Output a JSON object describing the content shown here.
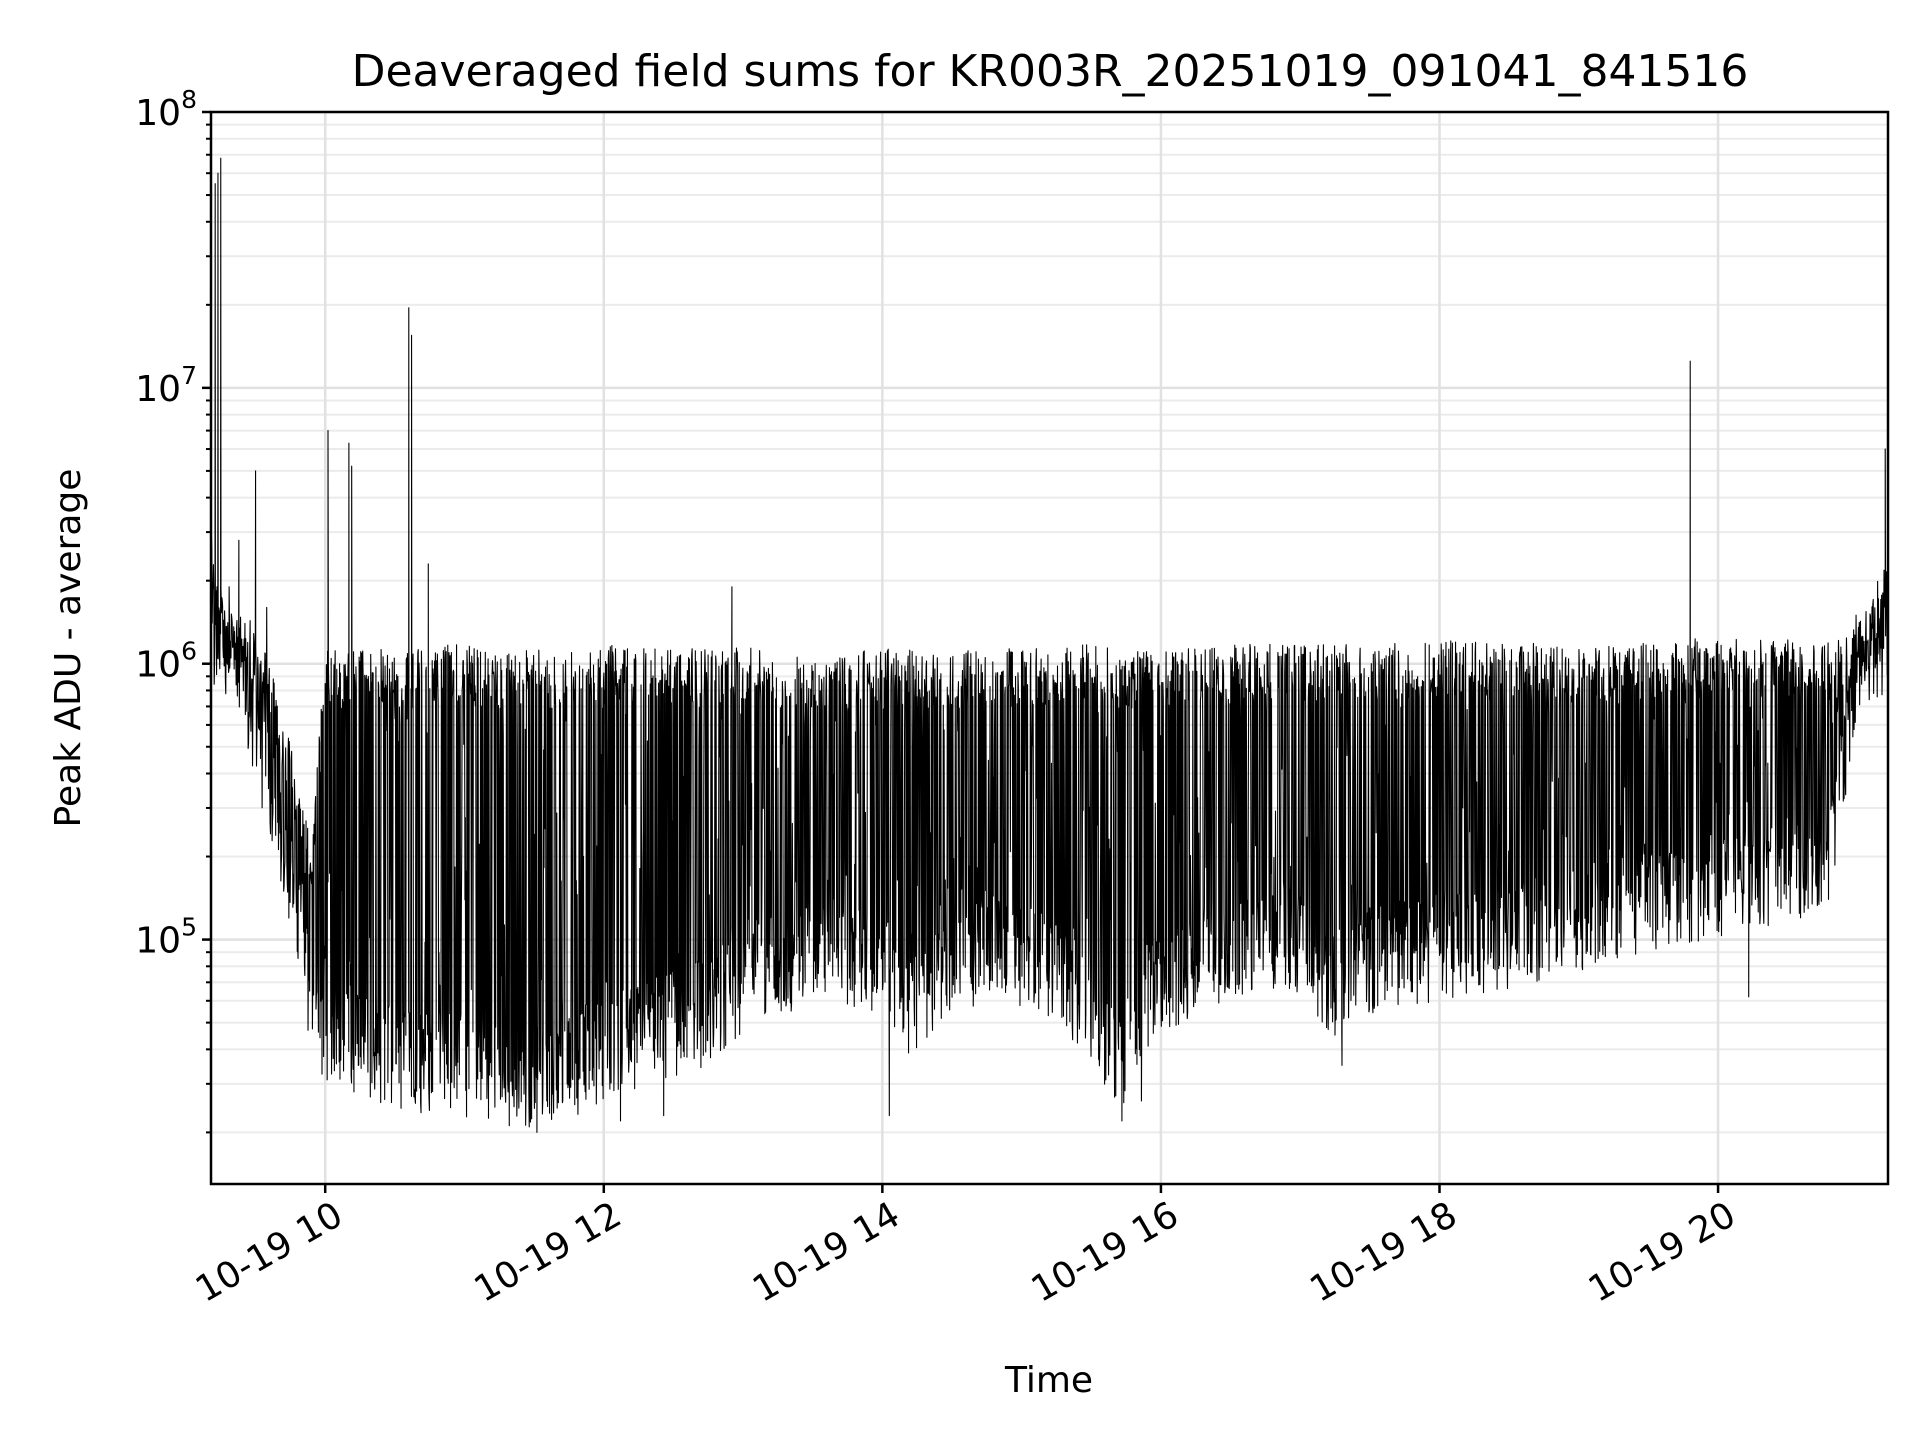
{
  "chart_data": {
    "type": "line",
    "title": "Deaveraged field sums for KR003R_20251019_091041_841516",
    "xlabel": "Time",
    "ylabel": "Peak ADU - average",
    "yscale": "log",
    "ylim": [
      13000,
      100000000
    ],
    "xlim_hours": [
      9.18,
      21.22
    ],
    "grid": true,
    "line_color": "#000000",
    "x_ticks": [
      {
        "hour": 10,
        "label": "10-19 10"
      },
      {
        "hour": 12,
        "label": "10-19 12"
      },
      {
        "hour": 14,
        "label": "10-19 14"
      },
      {
        "hour": 16,
        "label": "10-19 16"
      },
      {
        "hour": 18,
        "label": "10-19 18"
      },
      {
        "hour": 20,
        "label": "10-19 20"
      }
    ],
    "y_ticks": [
      {
        "value": 100000,
        "base": "10",
        "exp": "5"
      },
      {
        "value": 1000000,
        "base": "10",
        "exp": "6"
      },
      {
        "value": 10000000,
        "base": "10",
        "exp": "7"
      },
      {
        "value": 100000000,
        "base": "10",
        "exp": "8"
      }
    ],
    "envelope": {
      "hours": [
        9.18,
        9.22,
        9.3,
        9.4,
        9.5,
        9.6,
        9.7,
        9.8,
        9.9,
        10.0,
        10.3,
        10.6,
        10.9,
        11.2,
        11.5,
        11.8,
        12.1,
        12.4,
        12.7,
        13.0,
        13.3,
        13.6,
        13.9,
        14.2,
        14.5,
        14.8,
        15.1,
        15.4,
        15.7,
        16.0,
        16.3,
        16.6,
        16.9,
        17.2,
        17.5,
        17.8,
        18.1,
        18.4,
        18.7,
        19.0,
        19.3,
        19.6,
        19.9,
        20.2,
        20.5,
        20.8,
        21.0,
        21.22
      ],
      "high": [
        3000000,
        1800000,
        1500000,
        1400000,
        1200000,
        900000,
        600000,
        350000,
        200000,
        1000000,
        1000000,
        1000000,
        1050000,
        1000000,
        1000000,
        1000000,
        1050000,
        1000000,
        1000000,
        1050000,
        950000,
        900000,
        1000000,
        1000000,
        1000000,
        1000000,
        1000000,
        1050000,
        1000000,
        1000000,
        1000000,
        1050000,
        1050000,
        1050000,
        1050000,
        1050000,
        1100000,
        1050000,
        1050000,
        1050000,
        1050000,
        1050000,
        1100000,
        1100000,
        1100000,
        1050000,
        1200000,
        2200000
      ],
      "low": [
        1000000,
        1000000,
        900000,
        800000,
        500000,
        300000,
        180000,
        100000,
        50000,
        40000,
        35000,
        30000,
        30000,
        28000,
        27000,
        30000,
        35000,
        40000,
        45000,
        60000,
        70000,
        80000,
        70000,
        50000,
        70000,
        80000,
        70000,
        55000,
        30000,
        60000,
        70000,
        80000,
        90000,
        55000,
        70000,
        75000,
        80000,
        85000,
        90000,
        100000,
        110000,
        120000,
        130000,
        140000,
        150000,
        160000,
        900000,
        1000000
      ]
    },
    "spikes": [
      {
        "hour": 9.21,
        "value": 55000000
      },
      {
        "hour": 9.23,
        "value": 60000000
      },
      {
        "hour": 9.25,
        "value": 68000000
      },
      {
        "hour": 9.31,
        "value": 1900000
      },
      {
        "hour": 9.38,
        "value": 2800000
      },
      {
        "hour": 9.5,
        "value": 5000000
      },
      {
        "hour": 9.58,
        "value": 1600000
      },
      {
        "hour": 10.02,
        "value": 7000000
      },
      {
        "hour": 10.17,
        "value": 6300000
      },
      {
        "hour": 10.19,
        "value": 5200000
      },
      {
        "hour": 10.6,
        "value": 19500000
      },
      {
        "hour": 10.62,
        "value": 15500000
      },
      {
        "hour": 10.74,
        "value": 2300000
      },
      {
        "hour": 12.92,
        "value": 1900000
      },
      {
        "hour": 19.8,
        "value": 12500000
      },
      {
        "hour": 21.2,
        "value": 6000000
      }
    ],
    "dips": [
      {
        "hour": 11.52,
        "value": 20000
      },
      {
        "hour": 12.12,
        "value": 22000
      },
      {
        "hour": 12.43,
        "value": 23000
      },
      {
        "hour": 14.05,
        "value": 23000
      },
      {
        "hour": 15.72,
        "value": 22000
      },
      {
        "hour": 15.86,
        "value": 26000
      },
      {
        "hour": 17.3,
        "value": 35000
      },
      {
        "hour": 20.22,
        "value": 62000
      }
    ]
  }
}
